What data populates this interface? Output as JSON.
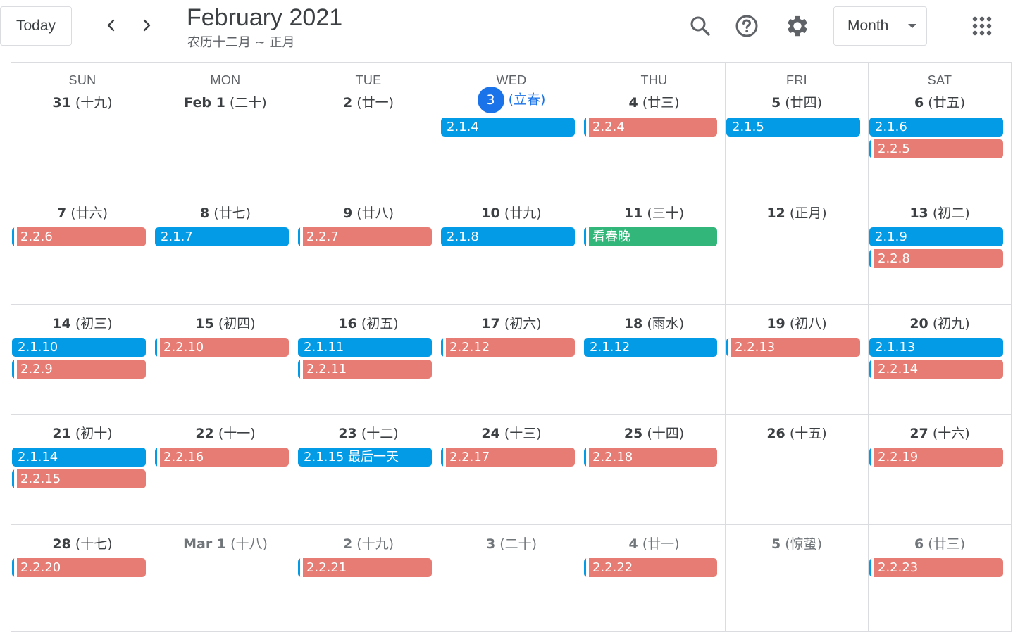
{
  "toolbar": {
    "today_label": "Today",
    "title": "February 2021",
    "subtitle": "农历十二月 ~ 正月",
    "view_label": "Month",
    "icons": {
      "prev": "chevron-left-icon",
      "next": "chevron-right-icon",
      "search": "search-icon",
      "help": "help-icon",
      "settings": "gear-icon",
      "apps": "apps-grid-icon"
    }
  },
  "colors": {
    "blue": "#039be5",
    "red": "#e67c73",
    "green": "#33b679",
    "today": "#1a73e8"
  },
  "weekdays": [
    "SUN",
    "MON",
    "TUE",
    "WED",
    "THU",
    "FRI",
    "SAT"
  ],
  "weeks": [
    {
      "days": [
        {
          "num": "31",
          "lunar": "(十九)",
          "muted": false,
          "events": []
        },
        {
          "num": "Feb 1",
          "lunar": "(二十)",
          "muted": false,
          "events": []
        },
        {
          "num": "2",
          "lunar": "(廿一)",
          "muted": false,
          "events": []
        },
        {
          "num": "3",
          "lunar": "(立春)",
          "muted": false,
          "today": true,
          "events": [
            {
              "label": "2.1.4",
              "color": "blue"
            }
          ]
        },
        {
          "num": "4",
          "lunar": "(廿三)",
          "muted": false,
          "events": [
            {
              "label": "2.2.4",
              "color": "red"
            }
          ]
        },
        {
          "num": "5",
          "lunar": "(廿四)",
          "muted": false,
          "events": [
            {
              "label": "2.1.5",
              "color": "blue"
            }
          ]
        },
        {
          "num": "6",
          "lunar": "(廿五)",
          "muted": false,
          "events": [
            {
              "label": "2.1.6",
              "color": "blue"
            },
            {
              "label": "2.2.5",
              "color": "red"
            }
          ]
        }
      ]
    },
    {
      "days": [
        {
          "num": "7",
          "lunar": "(廿六)",
          "muted": false,
          "events": [
            {
              "label": "2.2.6",
              "color": "red"
            }
          ]
        },
        {
          "num": "8",
          "lunar": "(廿七)",
          "muted": false,
          "events": [
            {
              "label": "2.1.7",
              "color": "blue"
            }
          ]
        },
        {
          "num": "9",
          "lunar": "(廿八)",
          "muted": false,
          "events": [
            {
              "label": "2.2.7",
              "color": "red"
            }
          ]
        },
        {
          "num": "10",
          "lunar": "(廿九)",
          "muted": false,
          "events": [
            {
              "label": "2.1.8",
              "color": "blue"
            }
          ]
        },
        {
          "num": "11",
          "lunar": "(三十)",
          "muted": false,
          "events": [
            {
              "label": "看春晚",
              "color": "green"
            }
          ]
        },
        {
          "num": "12",
          "lunar": "(正月)",
          "muted": false,
          "events": []
        },
        {
          "num": "13",
          "lunar": "(初二)",
          "muted": false,
          "events": [
            {
              "label": "2.1.9",
              "color": "blue"
            },
            {
              "label": "2.2.8",
              "color": "red"
            }
          ]
        }
      ]
    },
    {
      "days": [
        {
          "num": "14",
          "lunar": "(初三)",
          "muted": false,
          "events": [
            {
              "label": "2.1.10",
              "color": "blue"
            },
            {
              "label": "2.2.9",
              "color": "red"
            }
          ]
        },
        {
          "num": "15",
          "lunar": "(初四)",
          "muted": false,
          "events": [
            {
              "label": "2.2.10",
              "color": "red"
            }
          ]
        },
        {
          "num": "16",
          "lunar": "(初五)",
          "muted": false,
          "events": [
            {
              "label": "2.1.11",
              "color": "blue"
            },
            {
              "label": "2.2.11",
              "color": "red"
            }
          ]
        },
        {
          "num": "17",
          "lunar": "(初六)",
          "muted": false,
          "events": [
            {
              "label": "2.2.12",
              "color": "red"
            }
          ]
        },
        {
          "num": "18",
          "lunar": "(雨水)",
          "muted": false,
          "events": [
            {
              "label": "2.1.12",
              "color": "blue"
            }
          ]
        },
        {
          "num": "19",
          "lunar": "(初八)",
          "muted": false,
          "events": [
            {
              "label": "2.2.13",
              "color": "red"
            }
          ]
        },
        {
          "num": "20",
          "lunar": "(初九)",
          "muted": false,
          "events": [
            {
              "label": "2.1.13",
              "color": "blue"
            },
            {
              "label": "2.2.14",
              "color": "red"
            }
          ]
        }
      ]
    },
    {
      "days": [
        {
          "num": "21",
          "lunar": "(初十)",
          "muted": false,
          "events": [
            {
              "label": "2.1.14",
              "color": "blue"
            },
            {
              "label": "2.2.15",
              "color": "red"
            }
          ]
        },
        {
          "num": "22",
          "lunar": "(十一)",
          "muted": false,
          "events": [
            {
              "label": "2.2.16",
              "color": "red"
            }
          ]
        },
        {
          "num": "23",
          "lunar": "(十二)",
          "muted": false,
          "events": [
            {
              "label": "2.1.15 最后一天",
              "color": "blue"
            }
          ]
        },
        {
          "num": "24",
          "lunar": "(十三)",
          "muted": false,
          "events": [
            {
              "label": "2.2.17",
              "color": "red"
            }
          ]
        },
        {
          "num": "25",
          "lunar": "(十四)",
          "muted": false,
          "events": [
            {
              "label": "2.2.18",
              "color": "red"
            }
          ]
        },
        {
          "num": "26",
          "lunar": "(十五)",
          "muted": false,
          "events": []
        },
        {
          "num": "27",
          "lunar": "(十六)",
          "muted": false,
          "events": [
            {
              "label": "2.2.19",
              "color": "red"
            }
          ]
        }
      ]
    },
    {
      "days": [
        {
          "num": "28",
          "lunar": "(十七)",
          "muted": false,
          "events": [
            {
              "label": "2.2.20",
              "color": "red"
            }
          ]
        },
        {
          "num": "Mar 1",
          "lunar": "(十八)",
          "muted": true,
          "events": []
        },
        {
          "num": "2",
          "lunar": "(十九)",
          "muted": true,
          "events": [
            {
              "label": "2.2.21",
              "color": "red"
            }
          ]
        },
        {
          "num": "3",
          "lunar": "(二十)",
          "muted": true,
          "events": []
        },
        {
          "num": "4",
          "lunar": "(廿一)",
          "muted": true,
          "events": [
            {
              "label": "2.2.22",
              "color": "red"
            }
          ]
        },
        {
          "num": "5",
          "lunar": "(惊蛰)",
          "muted": true,
          "events": []
        },
        {
          "num": "6",
          "lunar": "(廿三)",
          "muted": true,
          "events": [
            {
              "label": "2.2.23",
              "color": "red"
            }
          ]
        }
      ]
    }
  ]
}
